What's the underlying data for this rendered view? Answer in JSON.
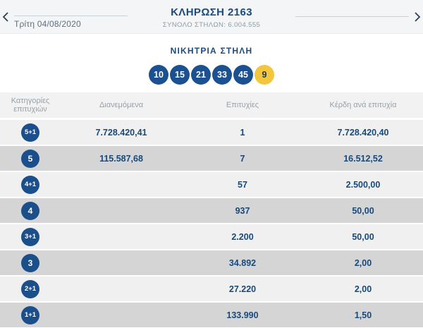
{
  "nav": {
    "prev_draw_date": "Τρίτη 04/08/2020",
    "title": "ΚΛΗΡΩΣΗ 2163",
    "subtitle": "ΣΥΝΟΛΟ ΣΤΗΛΩΝ: 6.004.555"
  },
  "winning": {
    "label": "ΝΙΚΗΤΡΙΑ ΣΤΗΛΗ",
    "numbers": [
      "10",
      "15",
      "21",
      "33",
      "45"
    ],
    "bonus": "9"
  },
  "table": {
    "headers": {
      "category_line1": "Κατηγορίες",
      "category_line2": "επιτυχιών",
      "distributed": "Διανεμόμενα",
      "winners": "Επιτυχίες",
      "prize": "Κέρδη ανά επιτυχία"
    },
    "rows": [
      {
        "category": "5+1",
        "distributed": "7.728.420,41",
        "winners": "1",
        "prize": "7.728.420,40"
      },
      {
        "category": "5",
        "distributed": "115.587,68",
        "winners": "7",
        "prize": "16.512,52"
      },
      {
        "category": "4+1",
        "distributed": "",
        "winners": "57",
        "prize": "2.500,00"
      },
      {
        "category": "4",
        "distributed": "",
        "winners": "937",
        "prize": "50,00"
      },
      {
        "category": "3+1",
        "distributed": "",
        "winners": "2.200",
        "prize": "50,00"
      },
      {
        "category": "3",
        "distributed": "",
        "winners": "34.892",
        "prize": "2,00"
      },
      {
        "category": "2+1",
        "distributed": "",
        "winners": "27.220",
        "prize": "2,00"
      },
      {
        "category": "1+1",
        "distributed": "",
        "winners": "133.990",
        "prize": "1,50"
      }
    ]
  },
  "colors": {
    "navy": "#1b4f8c",
    "ball_navy": "#1b5191",
    "ball_yellow": "#f3c63e",
    "title_navy": "#1c4b7d",
    "value_navy": "#174a7c",
    "row_light": "#f0f0f0",
    "row_dark": "#d5d5d5",
    "band_bg": "#f3f5f6",
    "header_text": "#98a0a8"
  }
}
